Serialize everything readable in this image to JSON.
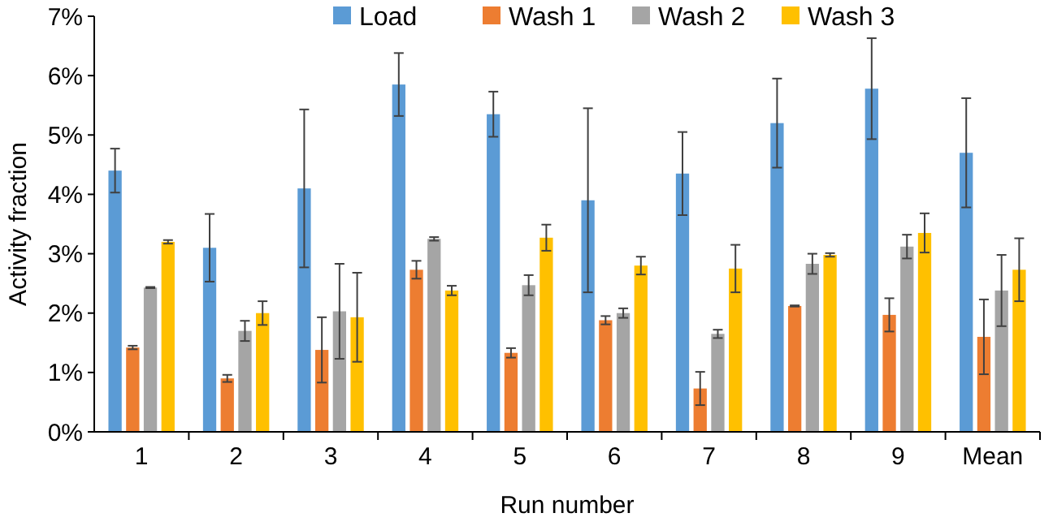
{
  "chart_data": {
    "type": "bar",
    "xlabel": "Run number",
    "ylabel": "Activity fraction",
    "categories": [
      "1",
      "2",
      "3",
      "4",
      "5",
      "6",
      "7",
      "8",
      "9",
      "Mean"
    ],
    "series": [
      {
        "name": "Load",
        "color": "#5b9bd5",
        "values": [
          4.4,
          3.1,
          4.1,
          5.85,
          5.35,
          3.9,
          4.35,
          5.2,
          5.78,
          4.7
        ],
        "errors": [
          0.37,
          0.57,
          1.33,
          0.53,
          0.38,
          1.55,
          0.7,
          0.75,
          0.85,
          0.92
        ]
      },
      {
        "name": "Wash 1",
        "color": "#ed7d31",
        "values": [
          1.42,
          0.9,
          1.38,
          2.73,
          1.33,
          1.88,
          0.73,
          2.12,
          1.97,
          1.6
        ],
        "errors": [
          0.03,
          0.06,
          0.55,
          0.15,
          0.08,
          0.07,
          0.28,
          0.01,
          0.28,
          0.63
        ]
      },
      {
        "name": "Wash 2",
        "color": "#a5a5a5",
        "values": [
          2.43,
          1.7,
          2.03,
          3.25,
          2.47,
          2.0,
          1.65,
          2.83,
          3.12,
          2.38
        ],
        "errors": [
          0.01,
          0.17,
          0.8,
          0.03,
          0.17,
          0.08,
          0.07,
          0.17,
          0.2,
          0.6
        ]
      },
      {
        "name": "Wash 3",
        "color": "#ffc000",
        "values": [
          3.2,
          2.0,
          1.93,
          2.38,
          3.27,
          2.8,
          2.75,
          2.98,
          3.35,
          2.73
        ],
        "errors": [
          0.03,
          0.2,
          0.75,
          0.08,
          0.22,
          0.15,
          0.4,
          0.03,
          0.33,
          0.53
        ]
      }
    ],
    "ylim": [
      0,
      7
    ],
    "yticks": [
      {
        "value": 0,
        "label": "0%"
      },
      {
        "value": 1,
        "label": "1%"
      },
      {
        "value": 2,
        "label": "2%"
      },
      {
        "value": 3,
        "label": "3%"
      },
      {
        "value": 4,
        "label": "4%"
      },
      {
        "value": 5,
        "label": "5%"
      },
      {
        "value": 6,
        "label": "6%"
      },
      {
        "value": 7,
        "label": "7%"
      }
    ],
    "grid": false,
    "legend": "top"
  }
}
